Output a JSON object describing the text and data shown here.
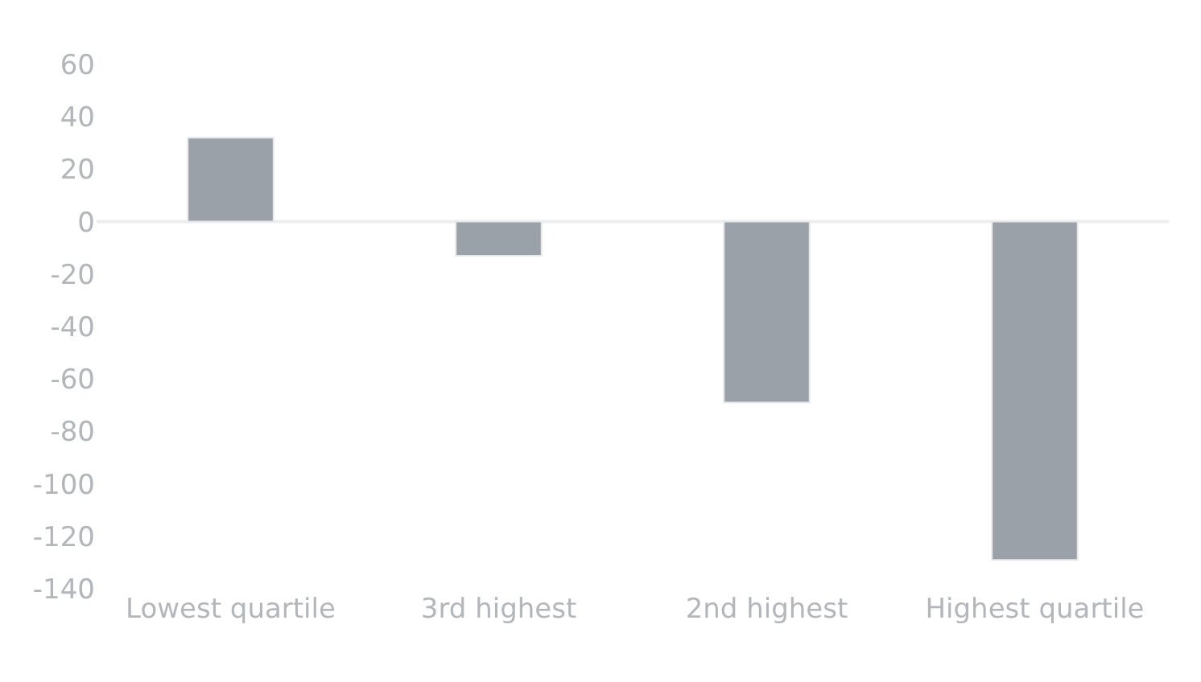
{
  "chart_data": {
    "type": "bar",
    "categories": [
      "Lowest quartile",
      "3rd highest",
      "2nd highest",
      "Highest quartile"
    ],
    "values": [
      32,
      -13,
      -69,
      -129
    ],
    "color": "#9ba1a9",
    "ylim": [
      -140,
      60
    ],
    "yticks": [
      -140,
      -120,
      -100,
      -80,
      -60,
      -40,
      -20,
      0,
      20,
      40,
      60
    ],
    "grid": false,
    "ref_lines": [
      {
        "axis": "y",
        "value": 0,
        "color": "#eceef0"
      }
    ]
  }
}
